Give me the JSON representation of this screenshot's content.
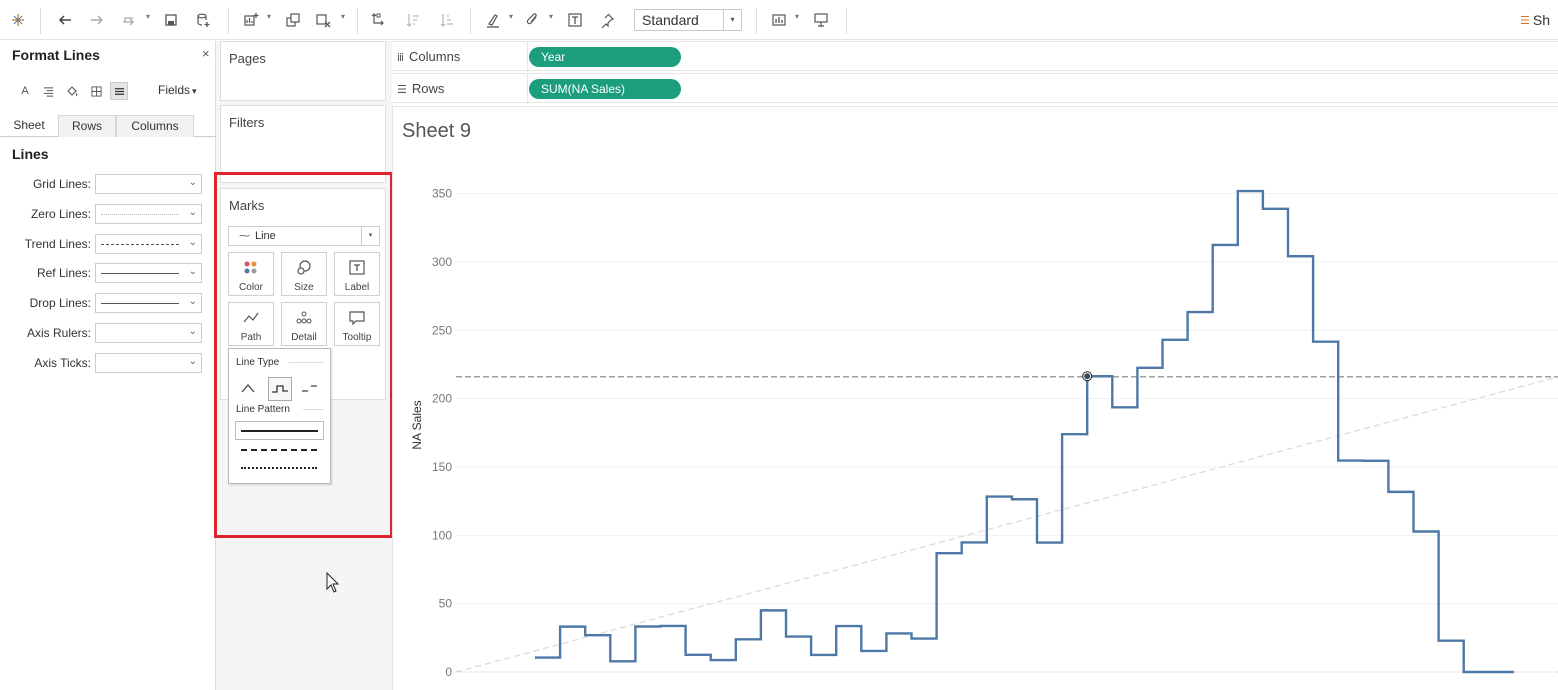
{
  "toolbar": {
    "view_mode": "Standard",
    "share_label": "Sh"
  },
  "format_panel": {
    "title": "Format Lines",
    "close": "×",
    "fields_label": "Fields",
    "tabs": [
      "Sheet",
      "Rows",
      "Columns"
    ],
    "active_tab": "Sheet",
    "section_heading": "Lines",
    "line_rows": [
      {
        "label": "Grid Lines:",
        "pattern": "none"
      },
      {
        "label": "Zero Lines:",
        "pattern": "dotted"
      },
      {
        "label": "Trend Lines:",
        "pattern": "dashed"
      },
      {
        "label": "Ref Lines:",
        "pattern": "solid"
      },
      {
        "label": "Drop Lines:",
        "pattern": "solid"
      },
      {
        "label": "Axis Rulers:",
        "pattern": "none"
      },
      {
        "label": "Axis Ticks:",
        "pattern": "none"
      }
    ]
  },
  "cards": {
    "pages": "Pages",
    "filters": "Filters",
    "marks": "Marks",
    "mark_type": "Line",
    "mark_buttons": [
      "Color",
      "Size",
      "Label",
      "Path",
      "Detail",
      "Tooltip"
    ]
  },
  "line_popup": {
    "line_type_heading": "Line Type",
    "line_pattern_heading": "Line Pattern"
  },
  "shelves": {
    "columns_label": "Columns",
    "columns_pill": "Year",
    "rows_label": "Rows",
    "rows_pill": "SUM(NA Sales)"
  },
  "sheet": {
    "title": "Sheet 9"
  },
  "colors": {
    "line": "#4e79a7",
    "pill": "#1a9e7c",
    "highlight": "#e0242b",
    "reference_line": "#a0a0a0",
    "trend_line": "#d8d8d8"
  },
  "chart_data": {
    "type": "line",
    "line_style": "step",
    "ylabel": "NA Sales",
    "xlabel": "",
    "ylim": [
      0,
      360
    ],
    "yticks": [
      0,
      50,
      100,
      150,
      200,
      250,
      300,
      350
    ],
    "grid": true,
    "values": [
      10.6,
      33.2,
      26.9,
      7.8,
      33.3,
      33.7,
      12.6,
      8.7,
      23.9,
      45.1,
      25.9,
      12.5,
      33.6,
      15.4,
      28.2,
      24.5,
      86.9,
      94.8,
      128.4,
      126.4,
      94.7,
      174.0,
      216.4,
      193.7,
      222.6,
      243.1,
      263.4,
      312.5,
      351.9,
      338.9,
      304.2,
      241.7,
      154.7,
      154.5,
      131.8,
      102.8,
      22.9,
      0.0,
      0.0
    ],
    "highlighted_index": 22,
    "reference_line": 216.0,
    "trend_line": [
      0,
      216
    ]
  }
}
